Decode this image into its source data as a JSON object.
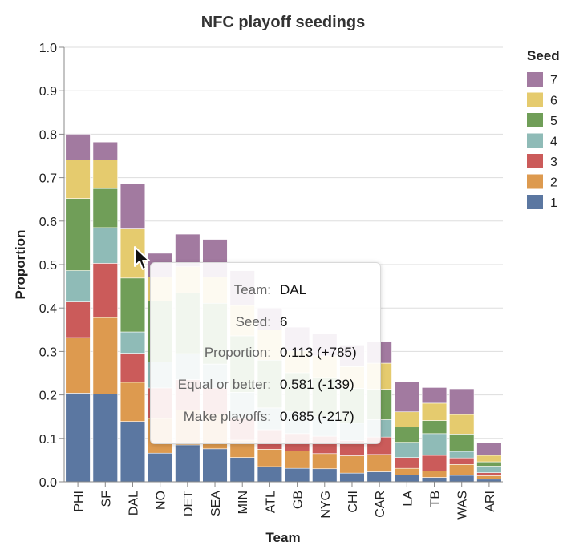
{
  "chart_data": {
    "type": "bar",
    "stacked": true,
    "title": "NFC playoff seedings",
    "xlabel": "Team",
    "ylabel": "Proportion",
    "ylim": [
      0,
      1.0
    ],
    "yticks": [
      "0.0",
      "0.1",
      "0.2",
      "0.3",
      "0.4",
      "0.5",
      "0.6",
      "0.7",
      "0.8",
      "0.9",
      "1.0"
    ],
    "grid": true,
    "legend_title": "Seed",
    "legend_position": "right",
    "categories": [
      "PHI",
      "SF",
      "DAL",
      "NO",
      "DET",
      "SEA",
      "MIN",
      "ATL",
      "GB",
      "NYG",
      "CHI",
      "CAR",
      "LA",
      "TB",
      "WAS",
      "ARI"
    ],
    "series": [
      {
        "name": "1",
        "color": "#5b77a1",
        "values": [
          0.204,
          0.202,
          0.139,
          0.066,
          0.085,
          0.076,
          0.056,
          0.035,
          0.031,
          0.03,
          0.02,
          0.023,
          0.016,
          0.01,
          0.015,
          0.006
        ]
      },
      {
        "name": "2",
        "color": "#dd9a4f",
        "values": [
          0.128,
          0.176,
          0.09,
          0.08,
          0.08,
          0.08,
          0.04,
          0.04,
          0.04,
          0.035,
          0.04,
          0.04,
          0.015,
          0.015,
          0.025,
          0.008
        ]
      },
      {
        "name": "3",
        "color": "#cb5b5a",
        "values": [
          0.082,
          0.125,
          0.067,
          0.07,
          0.07,
          0.06,
          0.05,
          0.045,
          0.04,
          0.04,
          0.035,
          0.04,
          0.025,
          0.036,
          0.015,
          0.007
        ]
      },
      {
        "name": "4",
        "color": "#8fbbb7",
        "values": [
          0.072,
          0.082,
          0.049,
          0.06,
          0.06,
          0.055,
          0.06,
          0.05,
          0.05,
          0.045,
          0.04,
          0.04,
          0.035,
          0.05,
          0.015,
          0.015
        ]
      },
      {
        "name": "5",
        "color": "#709e58",
        "values": [
          0.166,
          0.09,
          0.124,
          0.14,
          0.14,
          0.14,
          0.13,
          0.11,
          0.09,
          0.09,
          0.08,
          0.07,
          0.035,
          0.03,
          0.04,
          0.01
        ]
      },
      {
        "name": "6",
        "color": "#e5cb6e",
        "values": [
          0.089,
          0.066,
          0.113,
          0.055,
          0.06,
          0.06,
          0.07,
          0.07,
          0.05,
          0.05,
          0.05,
          0.06,
          0.035,
          0.04,
          0.045,
          0.015
        ]
      },
      {
        "name": "7",
        "color": "#a27aa0",
        "values": [
          0.059,
          0.041,
          0.104,
          0.055,
          0.075,
          0.087,
          0.08,
          0.05,
          0.055,
          0.05,
          0.05,
          0.05,
          0.07,
          0.036,
          0.059,
          0.029
        ]
      }
    ]
  },
  "tooltip": {
    "rows": [
      {
        "key": "Team:",
        "value": "DAL"
      },
      {
        "key": "Seed:",
        "value": "6"
      },
      {
        "key": "Proportion:",
        "value": "0.113 (+785)"
      },
      {
        "key": "Equal or better:",
        "value": "0.581 (-139)"
      },
      {
        "key": "Make playoffs:",
        "value": "0.685 (-217)"
      }
    ]
  }
}
